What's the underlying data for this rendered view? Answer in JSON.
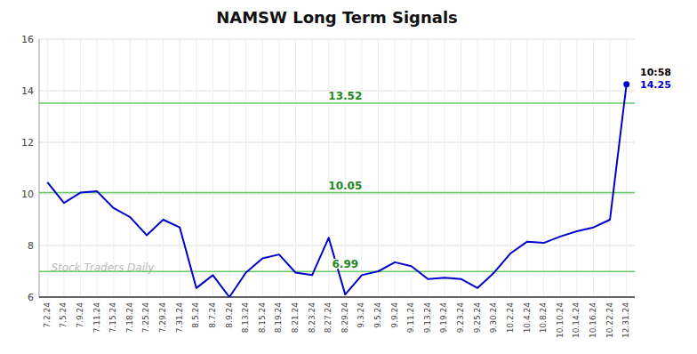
{
  "chart_data": {
    "type": "line",
    "title": "NAMSW Long Term Signals",
    "categories": [
      "7.2.24",
      "7.5.24",
      "7.9.24",
      "7.11.24",
      "7.15.24",
      "7.18.24",
      "7.25.24",
      "7.29.24",
      "7.31.24",
      "8.5.24",
      "8.7.24",
      "8.9.24",
      "8.13.24",
      "8.15.24",
      "8.19.24",
      "8.21.24",
      "8.23.24",
      "8.27.24",
      "8.29.24",
      "9.3.24",
      "9.5.24",
      "9.9.24",
      "9.11.24",
      "9.13.24",
      "9.19.24",
      "9.23.24",
      "9.25.24",
      "9.30.24",
      "10.2.24",
      "10.4.24",
      "10.8.24",
      "10.10.24",
      "10.14.24",
      "10.16.24",
      "10.22.24",
      "12.31.24"
    ],
    "values": [
      10.45,
      9.65,
      10.05,
      10.1,
      9.45,
      9.1,
      8.4,
      9.0,
      8.7,
      6.35,
      6.85,
      6.0,
      6.95,
      7.5,
      7.65,
      6.95,
      6.85,
      8.3,
      6.1,
      6.85,
      7.0,
      7.35,
      7.2,
      6.7,
      6.75,
      6.7,
      6.35,
      6.95,
      7.7,
      8.15,
      8.1,
      8.35,
      8.55,
      8.7,
      9.0,
      14.25
    ],
    "color": "#0000cc",
    "ylim": [
      6,
      16
    ],
    "yticks": [
      6,
      8,
      10,
      12,
      14,
      16
    ],
    "grid": true,
    "reference_lines": [
      6.99,
      10.05,
      13.52
    ],
    "annotations": [
      "10:58",
      "14.25"
    ],
    "watermark": "Stock Traders Daily"
  }
}
